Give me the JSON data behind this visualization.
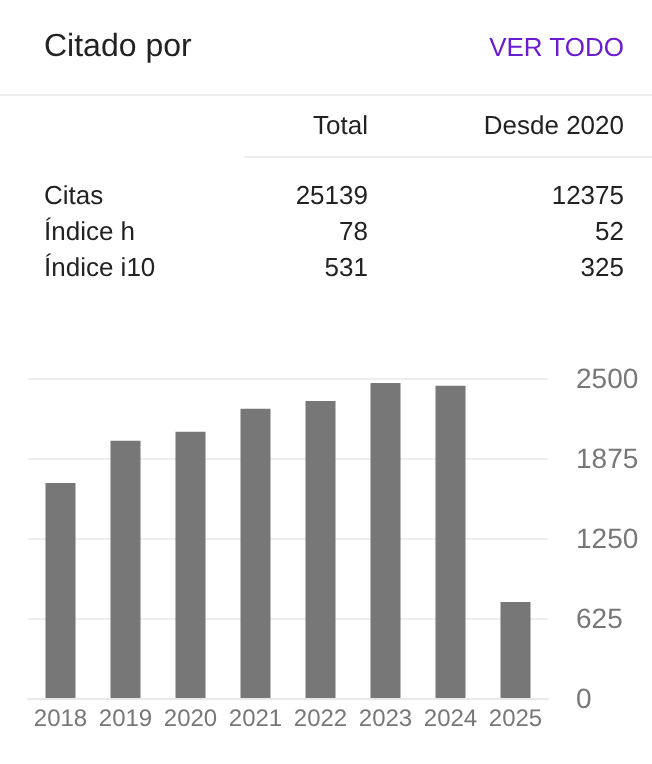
{
  "chart_data": [
    {
      "type": "other",
      "title": "Citado por",
      "annotations": [
        "VER TODO"
      ],
      "categories": [
        "Total",
        "Desde 2020"
      ],
      "y_categories": [
        "Citas",
        "Índice h",
        "Índice i10"
      ],
      "cell_labels": [
        [
          "25139",
          "12375"
        ],
        [
          "78",
          "52"
        ],
        [
          "531",
          "325"
        ]
      ]
    },
    {
      "type": "bar",
      "categories": [
        "2018",
        "2019",
        "2020",
        "2021",
        "2022",
        "2023",
        "2024",
        "2025"
      ],
      "values": [
        1680,
        2010,
        2080,
        2260,
        2320,
        2460,
        2440,
        750
      ],
      "color": "#777777",
      "ylim": [
        0,
        2500
      ],
      "yticks": [
        0,
        625,
        1250,
        1875,
        2500
      ],
      "grid": "y"
    }
  ]
}
